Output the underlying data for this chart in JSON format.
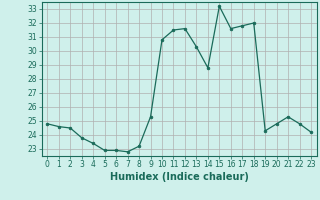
{
  "x": [
    0,
    1,
    2,
    3,
    4,
    5,
    6,
    7,
    8,
    9,
    10,
    11,
    12,
    13,
    14,
    15,
    16,
    17,
    18,
    19,
    20,
    21,
    22,
    23
  ],
  "y": [
    24.8,
    24.6,
    24.5,
    23.8,
    23.4,
    22.9,
    22.9,
    22.8,
    23.2,
    25.3,
    30.8,
    31.5,
    31.6,
    30.3,
    28.8,
    33.2,
    31.6,
    31.8,
    32.0,
    24.3,
    24.8,
    25.3,
    24.8,
    24.2
  ],
  "line_color": "#1a6b5a",
  "marker_color": "#1a6b5a",
  "bg_color": "#cff0eb",
  "grid_color_major": "#b0b0b0",
  "grid_color_minor": "#d8d8d8",
  "xlabel": "Humidex (Indice chaleur)",
  "ylim": [
    22.5,
    33.5
  ],
  "xlim": [
    -0.5,
    23.5
  ],
  "yticks": [
    23,
    24,
    25,
    26,
    27,
    28,
    29,
    30,
    31,
    32,
    33
  ],
  "xticks": [
    0,
    1,
    2,
    3,
    4,
    5,
    6,
    7,
    8,
    9,
    10,
    11,
    12,
    13,
    14,
    15,
    16,
    17,
    18,
    19,
    20,
    21,
    22,
    23
  ],
  "tick_fontsize": 5.5,
  "xlabel_fontsize": 7.0,
  "tick_color": "#1a6b5a",
  "spine_color": "#1a6b5a"
}
